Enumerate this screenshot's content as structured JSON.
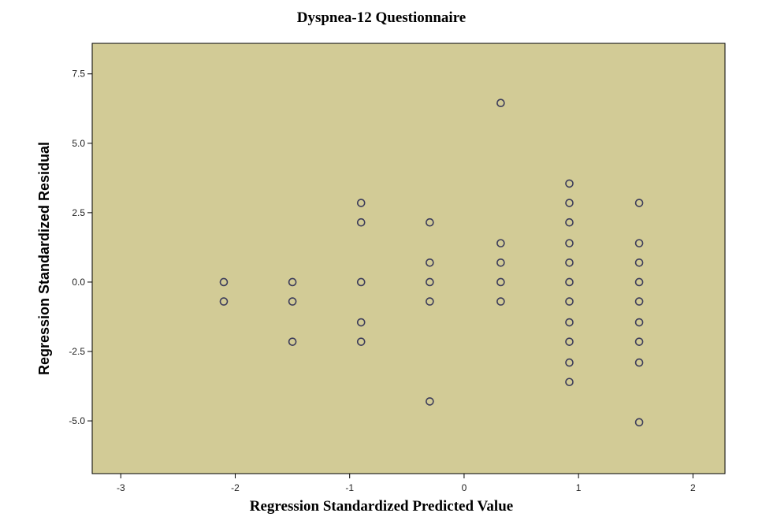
{
  "chart_data": {
    "type": "scatter",
    "title": "Dyspnea-12 Questionnaire",
    "xlabel": "Regression Standardized Predicted Value",
    "ylabel": "Regression Standardized Residual",
    "xlim": [
      -3.25,
      2.28
    ],
    "ylim": [
      -6.9,
      8.6
    ],
    "xticks": [
      -3,
      -2,
      -1,
      0,
      1,
      2
    ],
    "xtick_labels": [
      "-3",
      "-2",
      "-1",
      "0",
      "1",
      "2"
    ],
    "yticks": [
      7.5,
      5.0,
      2.5,
      0.0,
      -2.5,
      -5.0
    ],
    "ytick_labels": [
      "7.5",
      "5.0",
      "2.5",
      "0.0",
      "-2.5",
      "-5.0"
    ],
    "grid": false,
    "legend": "none",
    "colors": {
      "plot_background": "#D2CB96",
      "marker_stroke": "#3C3C5A",
      "page_background": "#ffffff"
    },
    "points": [
      {
        "x": -2.1,
        "y": 0.0
      },
      {
        "x": -2.1,
        "y": -0.7
      },
      {
        "x": -1.5,
        "y": 0.0
      },
      {
        "x": -1.5,
        "y": -0.7
      },
      {
        "x": -1.5,
        "y": -2.15
      },
      {
        "x": -0.9,
        "y": 2.85
      },
      {
        "x": -0.9,
        "y": 2.15
      },
      {
        "x": -0.9,
        "y": 0.0
      },
      {
        "x": -0.9,
        "y": -1.45
      },
      {
        "x": -0.9,
        "y": -2.15
      },
      {
        "x": -0.3,
        "y": 2.15
      },
      {
        "x": -0.3,
        "y": 0.7
      },
      {
        "x": -0.3,
        "y": 0.0
      },
      {
        "x": -0.3,
        "y": -0.7
      },
      {
        "x": -0.3,
        "y": -4.3
      },
      {
        "x": 0.32,
        "y": 6.45
      },
      {
        "x": 0.32,
        "y": 1.4
      },
      {
        "x": 0.32,
        "y": 0.7
      },
      {
        "x": 0.32,
        "y": 0.0
      },
      {
        "x": 0.32,
        "y": -0.7
      },
      {
        "x": 0.92,
        "y": 3.55
      },
      {
        "x": 0.92,
        "y": 2.85
      },
      {
        "x": 0.92,
        "y": 2.15
      },
      {
        "x": 0.92,
        "y": 1.4
      },
      {
        "x": 0.92,
        "y": 0.7
      },
      {
        "x": 0.92,
        "y": 0.0
      },
      {
        "x": 0.92,
        "y": -0.7
      },
      {
        "x": 0.92,
        "y": -1.45
      },
      {
        "x": 0.92,
        "y": -2.15
      },
      {
        "x": 0.92,
        "y": -2.9
      },
      {
        "x": 0.92,
        "y": -3.6
      },
      {
        "x": 1.53,
        "y": 2.85
      },
      {
        "x": 1.53,
        "y": 1.4
      },
      {
        "x": 1.53,
        "y": 0.7
      },
      {
        "x": 1.53,
        "y": 0.0
      },
      {
        "x": 1.53,
        "y": -0.7
      },
      {
        "x": 1.53,
        "y": -1.45
      },
      {
        "x": 1.53,
        "y": -2.15
      },
      {
        "x": 1.53,
        "y": -2.9
      },
      {
        "x": 1.53,
        "y": -5.05
      }
    ]
  }
}
